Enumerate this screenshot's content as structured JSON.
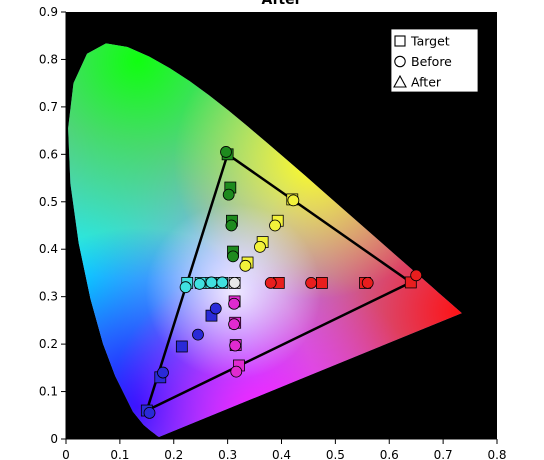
{
  "chart_data": {
    "type": "scatter",
    "title": "After",
    "xlabel": "",
    "ylabel": "",
    "xlim": [
      0,
      0.8
    ],
    "ylim": [
      0,
      0.9
    ],
    "x_ticks": [
      0,
      0.1,
      0.2,
      0.3,
      0.4,
      0.5,
      0.6,
      0.7,
      0.8
    ],
    "y_ticks": [
      0,
      0.1,
      0.2,
      0.3,
      0.4,
      0.5,
      0.6,
      0.7,
      0.8,
      0.9
    ],
    "x_tick_labels": [
      "0",
      "0.1",
      "0.2",
      "0.3",
      "0.4",
      "0.5",
      "0.6",
      "0.7",
      "0.8"
    ],
    "y_tick_labels": [
      "0",
      "0.1",
      "0.2",
      "0.3",
      "0.4",
      "0.5",
      "0.6",
      "0.7",
      "0.8",
      "0.9"
    ],
    "background": "#000000",
    "legend": {
      "position": "top-right",
      "entries": [
        {
          "label": "Target",
          "marker": "square"
        },
        {
          "label": "Before",
          "marker": "circle"
        },
        {
          "label": "After",
          "marker": "triangle"
        }
      ]
    },
    "gamut_triangle": [
      [
        0.64,
        0.33
      ],
      [
        0.3,
        0.6
      ],
      [
        0.15,
        0.06
      ]
    ],
    "spectral_locus": [
      [
        0.1741,
        0.005
      ],
      [
        0.1738,
        0.0049
      ],
      [
        0.1733,
        0.0048
      ],
      [
        0.1726,
        0.0048
      ],
      [
        0.1714,
        0.0051
      ],
      [
        0.1689,
        0.0069
      ],
      [
        0.1644,
        0.0109
      ],
      [
        0.1566,
        0.0177
      ],
      [
        0.144,
        0.0297
      ],
      [
        0.1241,
        0.0578
      ],
      [
        0.0913,
        0.1327
      ],
      [
        0.0687,
        0.2007
      ],
      [
        0.0454,
        0.295
      ],
      [
        0.0235,
        0.4127
      ],
      [
        0.0082,
        0.5384
      ],
      [
        0.0039,
        0.6548
      ],
      [
        0.0139,
        0.7502
      ],
      [
        0.0389,
        0.812
      ],
      [
        0.0743,
        0.8338
      ],
      [
        0.1142,
        0.8262
      ],
      [
        0.1547,
        0.8059
      ],
      [
        0.1929,
        0.7816
      ],
      [
        0.2296,
        0.7543
      ],
      [
        0.2658,
        0.7243
      ],
      [
        0.3016,
        0.6923
      ],
      [
        0.3373,
        0.6589
      ],
      [
        0.3731,
        0.6245
      ],
      [
        0.4087,
        0.5896
      ],
      [
        0.4441,
        0.5547
      ],
      [
        0.4788,
        0.5202
      ],
      [
        0.5125,
        0.4866
      ],
      [
        0.5448,
        0.4544
      ],
      [
        0.5752,
        0.4242
      ],
      [
        0.6029,
        0.3965
      ],
      [
        0.627,
        0.3725
      ],
      [
        0.6482,
        0.3514
      ],
      [
        0.6658,
        0.334
      ],
      [
        0.6801,
        0.3197
      ],
      [
        0.6915,
        0.3083
      ],
      [
        0.7006,
        0.2993
      ],
      [
        0.7079,
        0.292
      ],
      [
        0.714,
        0.2859
      ],
      [
        0.719,
        0.2809
      ],
      [
        0.723,
        0.277
      ],
      [
        0.726,
        0.274
      ],
      [
        0.7347,
        0.2653
      ]
    ],
    "series": [
      {
        "marker": "square",
        "points": [
          {
            "x": 0.15,
            "y": 0.06,
            "color": "#2a2ad8"
          },
          {
            "x": 0.175,
            "y": 0.13,
            "color": "#2a2ad8"
          },
          {
            "x": 0.215,
            "y": 0.195,
            "color": "#2a2ad8"
          },
          {
            "x": 0.27,
            "y": 0.26,
            "color": "#2a2ad8"
          },
          {
            "x": 0.225,
            "y": 0.329,
            "color": "#40e0e0"
          },
          {
            "x": 0.25,
            "y": 0.329,
            "color": "#40e0e0"
          },
          {
            "x": 0.27,
            "y": 0.329,
            "color": "#40e0e0"
          },
          {
            "x": 0.29,
            "y": 0.329,
            "color": "#40e0e0"
          },
          {
            "x": 0.313,
            "y": 0.329,
            "color": "#e8e8e8"
          },
          {
            "x": 0.3,
            "y": 0.6,
            "color": "#1e8a1e"
          },
          {
            "x": 0.305,
            "y": 0.53,
            "color": "#1e8a1e"
          },
          {
            "x": 0.308,
            "y": 0.46,
            "color": "#1e8a1e"
          },
          {
            "x": 0.31,
            "y": 0.395,
            "color": "#1e8a1e"
          },
          {
            "x": 0.395,
            "y": 0.329,
            "color": "#e81e1e"
          },
          {
            "x": 0.475,
            "y": 0.329,
            "color": "#e81e1e"
          },
          {
            "x": 0.555,
            "y": 0.329,
            "color": "#e81e1e"
          },
          {
            "x": 0.64,
            "y": 0.33,
            "color": "#e81e1e"
          },
          {
            "x": 0.42,
            "y": 0.505,
            "color": "#f2f23a"
          },
          {
            "x": 0.393,
            "y": 0.46,
            "color": "#f2f23a"
          },
          {
            "x": 0.365,
            "y": 0.415,
            "color": "#f2f23a"
          },
          {
            "x": 0.337,
            "y": 0.372,
            "color": "#f2f23a"
          },
          {
            "x": 0.313,
            "y": 0.29,
            "color": "#e02ad0"
          },
          {
            "x": 0.314,
            "y": 0.245,
            "color": "#e02ad0"
          },
          {
            "x": 0.315,
            "y": 0.198,
            "color": "#e02ad0"
          },
          {
            "x": 0.321,
            "y": 0.155,
            "color": "#e02ad0"
          }
        ]
      },
      {
        "marker": "circle",
        "points": [
          {
            "x": 0.155,
            "y": 0.055,
            "color": "#2a2ad8"
          },
          {
            "x": 0.18,
            "y": 0.14,
            "color": "#2a2ad8"
          },
          {
            "x": 0.245,
            "y": 0.22,
            "color": "#2a2ad8"
          },
          {
            "x": 0.278,
            "y": 0.275,
            "color": "#2a2ad8"
          },
          {
            "x": 0.222,
            "y": 0.32,
            "color": "#40e0e0"
          },
          {
            "x": 0.248,
            "y": 0.327,
            "color": "#40e0e0"
          },
          {
            "x": 0.27,
            "y": 0.33,
            "color": "#40e0e0"
          },
          {
            "x": 0.29,
            "y": 0.33,
            "color": "#40e0e0"
          },
          {
            "x": 0.313,
            "y": 0.329,
            "color": "#e8e8e8"
          },
          {
            "x": 0.297,
            "y": 0.605,
            "color": "#1e8a1e"
          },
          {
            "x": 0.302,
            "y": 0.515,
            "color": "#1e8a1e"
          },
          {
            "x": 0.307,
            "y": 0.45,
            "color": "#1e8a1e"
          },
          {
            "x": 0.31,
            "y": 0.385,
            "color": "#1e8a1e"
          },
          {
            "x": 0.38,
            "y": 0.329,
            "color": "#e81e1e"
          },
          {
            "x": 0.455,
            "y": 0.329,
            "color": "#e81e1e"
          },
          {
            "x": 0.56,
            "y": 0.329,
            "color": "#e81e1e"
          },
          {
            "x": 0.65,
            "y": 0.345,
            "color": "#e81e1e"
          },
          {
            "x": 0.422,
            "y": 0.503,
            "color": "#f2f23a"
          },
          {
            "x": 0.388,
            "y": 0.45,
            "color": "#f2f23a"
          },
          {
            "x": 0.36,
            "y": 0.405,
            "color": "#f2f23a"
          },
          {
            "x": 0.333,
            "y": 0.365,
            "color": "#f2f23a"
          },
          {
            "x": 0.312,
            "y": 0.285,
            "color": "#e02ad0"
          },
          {
            "x": 0.312,
            "y": 0.242,
            "color": "#e02ad0"
          },
          {
            "x": 0.314,
            "y": 0.197,
            "color": "#e02ad0"
          },
          {
            "x": 0.316,
            "y": 0.142,
            "color": "#e02ad0"
          }
        ]
      }
    ]
  }
}
